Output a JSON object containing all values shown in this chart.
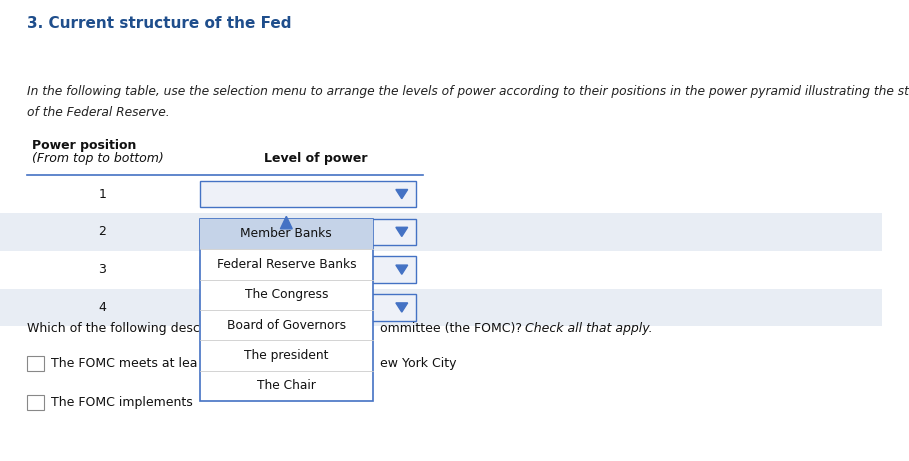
{
  "title": "3. Current structure of the Fed",
  "title_color": "#1f4e8c",
  "title_fontsize": 11,
  "bg_color": "#ffffff",
  "instruction_line1": "In the following table, use the selection menu to arrange the levels of power according to their positions in the power pyramid illustrating the struct",
  "instruction_line2": "of the Federal Reserve.",
  "col1_header": "Power position",
  "col1_subheader": "(From top to bottom)",
  "col2_header": "Level of power",
  "rows": [
    {
      "num": "1",
      "bg": "#ffffff"
    },
    {
      "num": "2",
      "bg": "#e8edf4"
    },
    {
      "num": "3",
      "bg": "#ffffff"
    },
    {
      "num": "4",
      "bg": "#e8edf4"
    }
  ],
  "dropdown_items": [
    "Member Banks",
    "Federal Reserve Banks",
    "The Congress",
    "Board of Governors",
    "The president",
    "The Chair"
  ],
  "dropdown_border_color": "#4472c4",
  "dropdown_highlight_color": "#c5d3e8",
  "table_header_line_color": "#4472c4",
  "dropdown_arrow_color": "#4472c4",
  "fomc_question_text": "Which of the following describe th",
  "fomc_question_text2": "ommittee (the FOMC)?",
  "fomc_question_text3": " Check all that apply.",
  "fomc_item1": "The FOMC meets at lea",
  "fomc_item1_cont": "ew York City",
  "fomc_item2": "The FOMC implements",
  "figsize": [
    9.09,
    4.61
  ],
  "dpi": 100
}
